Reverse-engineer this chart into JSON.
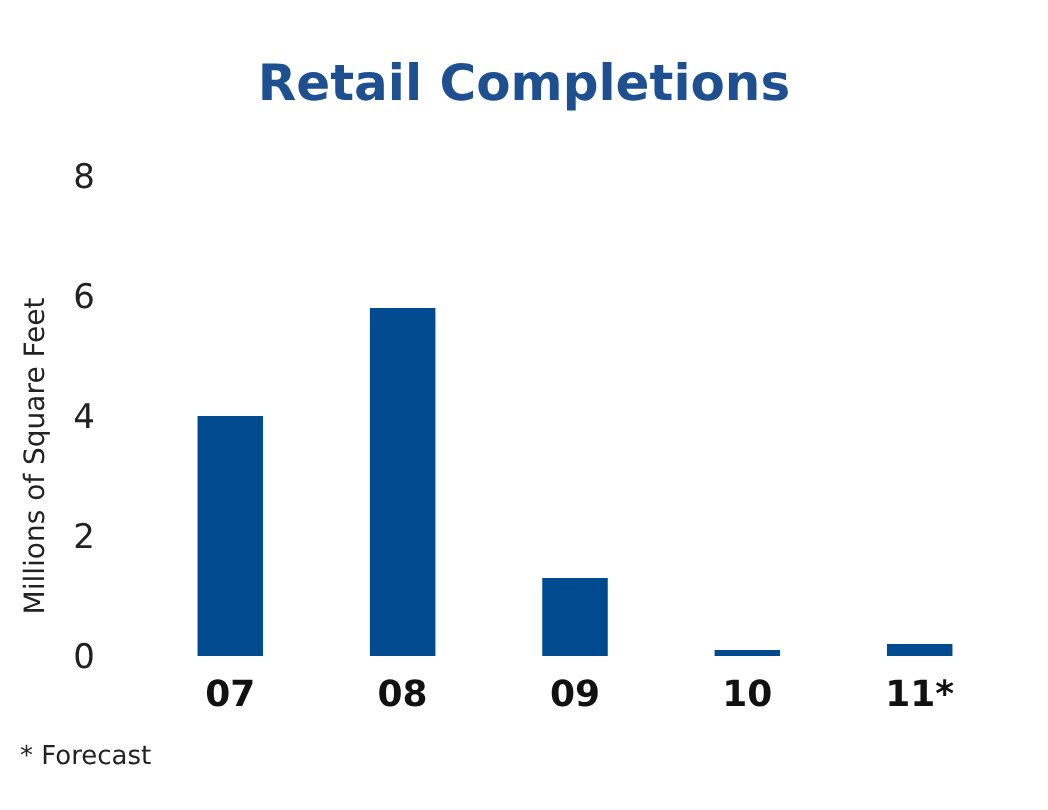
{
  "chart_data": {
    "type": "bar",
    "title": "Retail Completions",
    "ylabel": "Millions of Square Feet",
    "categories": [
      "07",
      "08",
      "09",
      "10",
      "11*"
    ],
    "series": [
      {
        "color": "#004a8f",
        "values": [
          4.0,
          5.8,
          1.3,
          0.1,
          0.2
        ]
      }
    ],
    "ylim": [
      0,
      8
    ],
    "yticks": [
      0,
      2,
      4,
      6,
      8
    ],
    "grid": false,
    "annotations": [
      "* Forecast"
    ]
  }
}
